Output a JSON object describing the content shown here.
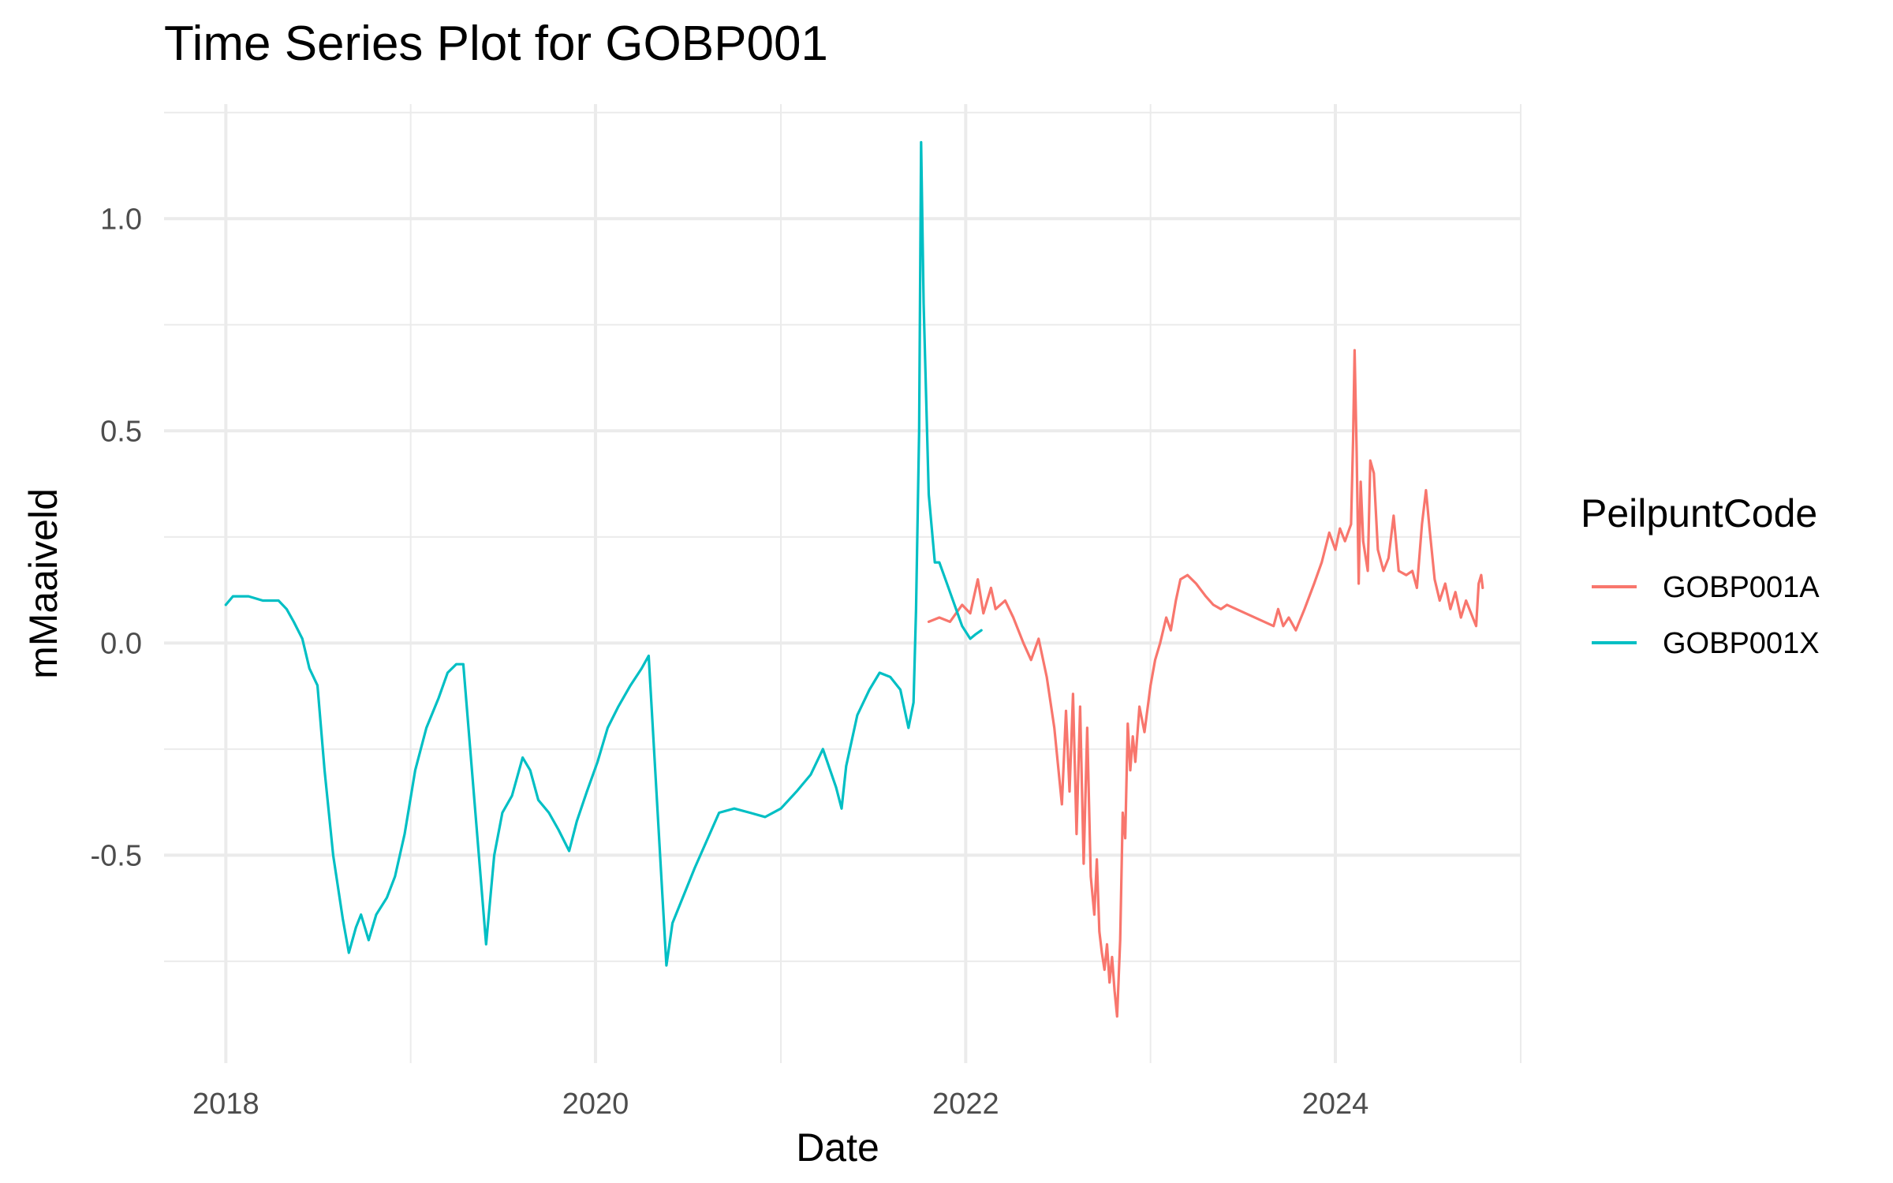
{
  "chart_data": {
    "type": "line",
    "title": "Time Series Plot for GOBP001",
    "xlabel": "Date",
    "ylabel": "mMaaiveld",
    "x_ticks": [
      "2018",
      "2020",
      "2022",
      "2024"
    ],
    "y_ticks": [
      "-0.5",
      "0.0",
      "0.5",
      "1.0"
    ],
    "xlim": [
      "2017-09-01",
      "2025-01-01"
    ],
    "ylim": [
      -0.99,
      1.27
    ],
    "grid": true,
    "legend": {
      "title": "PeilpuntCode",
      "position": "right"
    },
    "series": [
      {
        "name": "GOBP001A",
        "color": "#F8766D",
        "points": [
          [
            "2021-10-20",
            0.05
          ],
          [
            "2021-11-10",
            0.06
          ],
          [
            "2021-12-01",
            0.05
          ],
          [
            "2021-12-25",
            0.09
          ],
          [
            "2022-01-10",
            0.07
          ],
          [
            "2022-01-25",
            0.15
          ],
          [
            "2022-02-05",
            0.07
          ],
          [
            "2022-02-20",
            0.13
          ],
          [
            "2022-03-01",
            0.08
          ],
          [
            "2022-03-20",
            0.1
          ],
          [
            "2022-04-05",
            0.06
          ],
          [
            "2022-04-25",
            0.0
          ],
          [
            "2022-05-10",
            -0.04
          ],
          [
            "2022-05-25",
            0.01
          ],
          [
            "2022-06-10",
            -0.08
          ],
          [
            "2022-06-25",
            -0.2
          ],
          [
            "2022-07-10",
            -0.38
          ],
          [
            "2022-07-18",
            -0.16
          ],
          [
            "2022-07-25",
            -0.35
          ],
          [
            "2022-08-01",
            -0.12
          ],
          [
            "2022-08-08",
            -0.45
          ],
          [
            "2022-08-15",
            -0.15
          ],
          [
            "2022-08-22",
            -0.52
          ],
          [
            "2022-08-29",
            -0.2
          ],
          [
            "2022-09-05",
            -0.55
          ],
          [
            "2022-09-12",
            -0.64
          ],
          [
            "2022-09-17",
            -0.51
          ],
          [
            "2022-09-22",
            -0.68
          ],
          [
            "2022-09-27",
            -0.73
          ],
          [
            "2022-10-02",
            -0.77
          ],
          [
            "2022-10-07",
            -0.71
          ],
          [
            "2022-10-12",
            -0.8
          ],
          [
            "2022-10-17",
            -0.74
          ],
          [
            "2022-10-22",
            -0.82
          ],
          [
            "2022-10-27",
            -0.88
          ],
          [
            "2022-11-02",
            -0.7
          ],
          [
            "2022-11-07",
            -0.4
          ],
          [
            "2022-11-12",
            -0.46
          ],
          [
            "2022-11-17",
            -0.19
          ],
          [
            "2022-11-22",
            -0.3
          ],
          [
            "2022-11-27",
            -0.22
          ],
          [
            "2022-12-02",
            -0.28
          ],
          [
            "2022-12-10",
            -0.15
          ],
          [
            "2022-12-20",
            -0.21
          ],
          [
            "2023-01-01",
            -0.1
          ],
          [
            "2023-01-10",
            -0.04
          ],
          [
            "2023-01-20",
            0.0
          ],
          [
            "2023-02-01",
            0.06
          ],
          [
            "2023-02-10",
            0.03
          ],
          [
            "2023-02-20",
            0.1
          ],
          [
            "2023-03-01",
            0.15
          ],
          [
            "2023-03-15",
            0.16
          ],
          [
            "2023-04-01",
            0.14
          ],
          [
            "2023-04-20",
            0.11
          ],
          [
            "2023-05-05",
            0.09
          ],
          [
            "2023-05-20",
            0.08
          ],
          [
            "2023-06-01",
            0.09
          ],
          [
            "2023-09-01",
            0.04
          ],
          [
            "2023-09-10",
            0.08
          ],
          [
            "2023-09-20",
            0.04
          ],
          [
            "2023-10-01",
            0.06
          ],
          [
            "2023-10-15",
            0.03
          ],
          [
            "2023-11-01",
            0.08
          ],
          [
            "2023-11-20",
            0.14
          ],
          [
            "2023-12-05",
            0.19
          ],
          [
            "2023-12-20",
            0.26
          ],
          [
            "2024-01-01",
            0.22
          ],
          [
            "2024-01-10",
            0.27
          ],
          [
            "2024-01-20",
            0.24
          ],
          [
            "2024-02-01",
            0.28
          ],
          [
            "2024-02-05",
            0.48
          ],
          [
            "2024-02-08",
            0.69
          ],
          [
            "2024-02-12",
            0.45
          ],
          [
            "2024-02-16",
            0.14
          ],
          [
            "2024-02-20",
            0.38
          ],
          [
            "2024-02-25",
            0.24
          ],
          [
            "2024-03-05",
            0.17
          ],
          [
            "2024-03-10",
            0.43
          ],
          [
            "2024-03-17",
            0.4
          ],
          [
            "2024-03-25",
            0.22
          ],
          [
            "2024-04-05",
            0.17
          ],
          [
            "2024-04-15",
            0.2
          ],
          [
            "2024-04-25",
            0.3
          ],
          [
            "2024-05-05",
            0.17
          ],
          [
            "2024-05-20",
            0.16
          ],
          [
            "2024-06-01",
            0.17
          ],
          [
            "2024-06-10",
            0.13
          ],
          [
            "2024-06-20",
            0.28
          ],
          [
            "2024-06-28",
            0.36
          ],
          [
            "2024-07-05",
            0.27
          ],
          [
            "2024-07-15",
            0.15
          ],
          [
            "2024-07-25",
            0.1
          ],
          [
            "2024-08-05",
            0.14
          ],
          [
            "2024-08-15",
            0.08
          ],
          [
            "2024-08-25",
            0.12
          ],
          [
            "2024-09-05",
            0.06
          ],
          [
            "2024-09-15",
            0.1
          ],
          [
            "2024-09-25",
            0.07
          ],
          [
            "2024-10-05",
            0.04
          ],
          [
            "2024-10-10",
            0.14
          ],
          [
            "2024-10-15",
            0.16
          ],
          [
            "2024-10-18",
            0.13
          ]
        ]
      },
      {
        "name": "GOBP001X",
        "color": "#00BFC4",
        "points": [
          [
            "2018-01-01",
            0.09
          ],
          [
            "2018-01-15",
            0.11
          ],
          [
            "2018-02-15",
            0.11
          ],
          [
            "2018-03-15",
            0.1
          ],
          [
            "2018-04-15",
            0.1
          ],
          [
            "2018-05-01",
            0.08
          ],
          [
            "2018-05-15",
            0.05
          ],
          [
            "2018-06-01",
            0.01
          ],
          [
            "2018-06-15",
            -0.06
          ],
          [
            "2018-07-01",
            -0.1
          ],
          [
            "2018-07-15",
            -0.3
          ],
          [
            "2018-08-01",
            -0.5
          ],
          [
            "2018-08-20",
            -0.65
          ],
          [
            "2018-09-01",
            -0.73
          ],
          [
            "2018-09-15",
            -0.67
          ],
          [
            "2018-09-25",
            -0.64
          ],
          [
            "2018-10-10",
            -0.7
          ],
          [
            "2018-10-25",
            -0.64
          ],
          [
            "2018-11-15",
            -0.6
          ],
          [
            "2018-12-01",
            -0.55
          ],
          [
            "2018-12-20",
            -0.45
          ],
          [
            "2019-01-10",
            -0.3
          ],
          [
            "2019-02-01",
            -0.2
          ],
          [
            "2019-02-25",
            -0.13
          ],
          [
            "2019-03-15",
            -0.07
          ],
          [
            "2019-04-01",
            -0.05
          ],
          [
            "2019-04-15",
            -0.05
          ],
          [
            "2019-05-30",
            -0.71
          ],
          [
            "2019-06-15",
            -0.5
          ],
          [
            "2019-07-01",
            -0.4
          ],
          [
            "2019-07-20",
            -0.36
          ],
          [
            "2019-08-10",
            -0.27
          ],
          [
            "2019-08-25",
            -0.3
          ],
          [
            "2019-09-10",
            -0.37
          ],
          [
            "2019-10-01",
            -0.4
          ],
          [
            "2019-10-20",
            -0.44
          ],
          [
            "2019-11-10",
            -0.49
          ],
          [
            "2019-11-25",
            -0.42
          ],
          [
            "2019-12-15",
            -0.35
          ],
          [
            "2020-01-05",
            -0.28
          ],
          [
            "2020-01-25",
            -0.2
          ],
          [
            "2020-02-15",
            -0.15
          ],
          [
            "2020-03-10",
            -0.1
          ],
          [
            "2020-04-01",
            -0.06
          ],
          [
            "2020-04-15",
            -0.03
          ],
          [
            "2020-05-20",
            -0.76
          ],
          [
            "2020-06-01",
            -0.66
          ],
          [
            "2020-07-15",
            -0.53
          ],
          [
            "2020-09-01",
            -0.4
          ],
          [
            "2020-10-01",
            -0.39
          ],
          [
            "2020-11-01",
            -0.4
          ],
          [
            "2020-12-01",
            -0.41
          ],
          [
            "2021-01-01",
            -0.39
          ],
          [
            "2021-02-01",
            -0.35
          ],
          [
            "2021-03-01",
            -0.31
          ],
          [
            "2021-03-25",
            -0.25
          ],
          [
            "2021-04-20",
            -0.34
          ],
          [
            "2021-05-01",
            -0.39
          ],
          [
            "2021-05-10",
            -0.29
          ],
          [
            "2021-06-01",
            -0.17
          ],
          [
            "2021-06-25",
            -0.11
          ],
          [
            "2021-07-15",
            -0.07
          ],
          [
            "2021-08-05",
            -0.08
          ],
          [
            "2021-08-25",
            -0.11
          ],
          [
            "2021-09-10",
            -0.2
          ],
          [
            "2021-09-20",
            -0.14
          ],
          [
            "2021-09-25",
            0.08
          ],
          [
            "2021-10-01",
            0.5
          ],
          [
            "2021-10-05",
            1.18
          ],
          [
            "2021-10-10",
            0.8
          ],
          [
            "2021-10-20",
            0.35
          ],
          [
            "2021-11-01",
            0.19
          ],
          [
            "2021-11-10",
            0.19
          ],
          [
            "2021-11-25",
            0.14
          ],
          [
            "2021-12-10",
            0.09
          ],
          [
            "2021-12-25",
            0.04
          ],
          [
            "2022-01-10",
            0.01
          ],
          [
            "2022-01-20",
            0.02
          ],
          [
            "2022-02-01",
            0.03
          ]
        ]
      }
    ]
  }
}
